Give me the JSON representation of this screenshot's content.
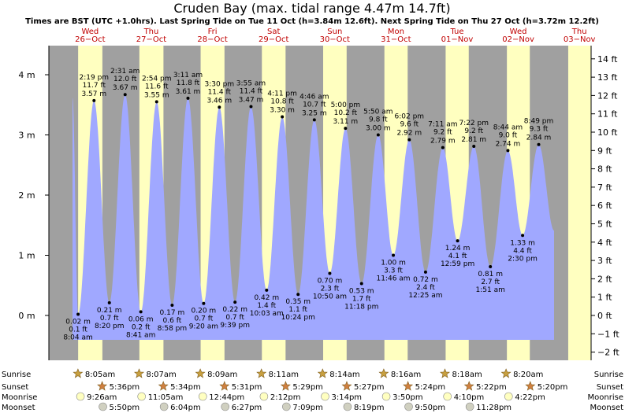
{
  "chart_data": {
    "type": "area",
    "title": "Cruden Bay (max. tidal range 4.47m 14.7ft)",
    "subtitle": "Times are BST (UTC +1.0hrs). Last Spring Tide on Tue 11 Oct (h=3.84m 12.6ft). Next Spring Tide on Thu 27 Oct (h=3.72m 12.2ft)",
    "left_axis": {
      "unit": "m",
      "ticks": [
        {
          "v": 0,
          "label": "0 m"
        },
        {
          "v": 1,
          "label": "1 m"
        },
        {
          "v": 2,
          "label": "2 m"
        },
        {
          "v": 3,
          "label": "3 m"
        },
        {
          "v": 4,
          "label": "4 m"
        }
      ],
      "range": [
        -0.5,
        4.5
      ]
    },
    "right_axis": {
      "unit": "ft",
      "ticks": [
        {
          "v": -2,
          "label": "−2 ft"
        },
        {
          "v": -1,
          "label": "−1 ft"
        },
        {
          "v": 0,
          "label": "0 ft"
        },
        {
          "v": 1,
          "label": "1 ft"
        },
        {
          "v": 2,
          "label": "2 ft"
        },
        {
          "v": 3,
          "label": "3 ft"
        },
        {
          "v": 4,
          "label": "4 ft"
        },
        {
          "v": 5,
          "label": "5 ft"
        },
        {
          "v": 6,
          "label": "6 ft"
        },
        {
          "v": 7,
          "label": "7 ft"
        },
        {
          "v": 8,
          "label": "8 ft"
        },
        {
          "v": 9,
          "label": "9 ft"
        },
        {
          "v": 10,
          "label": "10 ft"
        },
        {
          "v": 11,
          "label": "11 ft"
        },
        {
          "v": 12,
          "label": "12 ft"
        },
        {
          "v": 13,
          "label": "13 ft"
        },
        {
          "v": 14,
          "label": "14 ft"
        }
      ]
    },
    "days": [
      {
        "dow": "Wed",
        "date": "26−Oct",
        "sunrise": "8:05am",
        "sunset": "5:36pm",
        "moonrise": "9:26am",
        "moonset": "5:50pm"
      },
      {
        "dow": "Thu",
        "date": "27−Oct",
        "sunrise": "8:07am",
        "sunset": "5:34pm",
        "moonrise": "11:05am",
        "moonset": "6:04pm"
      },
      {
        "dow": "Fri",
        "date": "28−Oct",
        "sunrise": "8:09am",
        "sunset": "5:31pm",
        "moonrise": "12:44pm",
        "moonset": "6:27pm"
      },
      {
        "dow": "Sat",
        "date": "29−Oct",
        "sunrise": "8:11am",
        "sunset": "5:29pm",
        "moonrise": "2:12pm",
        "moonset": "7:09pm"
      },
      {
        "dow": "Sun",
        "date": "30−Oct",
        "sunrise": "8:14am",
        "sunset": "5:27pm",
        "moonrise": "3:14pm",
        "moonset": "8:19pm"
      },
      {
        "dow": "Mon",
        "date": "31−Oct",
        "sunrise": "8:16am",
        "sunset": "5:24pm",
        "moonrise": "3:50pm",
        "moonset": "9:50pm"
      },
      {
        "dow": "Tue",
        "date": "01−Nov",
        "sunrise": "8:18am",
        "sunset": "5:22pm",
        "moonrise": "4:10pm",
        "moonset": "11:28pm"
      },
      {
        "dow": "Wed",
        "date": "02−Nov",
        "sunrise": "8:20am",
        "sunset": "5:20pm",
        "moonrise": "4:22pm",
        "moonset": ""
      },
      {
        "dow": "Thu",
        "date": "03−Nov",
        "sunrise": "",
        "sunset": "",
        "moonrise": "",
        "moonset": ""
      }
    ],
    "start_height_m": 3.62,
    "end_height_m": 1.41,
    "extremes": [
      {
        "day": 0,
        "time": "8:04 am",
        "h": 0.02,
        "ft": "0.1 ft",
        "m": "0.02 m",
        "type": "low"
      },
      {
        "day": 0,
        "time": "2:19 pm",
        "h": 3.57,
        "ft": "11.7 ft",
        "m": "3.57 m",
        "type": "high"
      },
      {
        "day": 0,
        "time": "8:20 pm",
        "h": 0.21,
        "ft": "0.7 ft",
        "m": "0.21 m",
        "type": "low"
      },
      {
        "day": 1,
        "time": "2:31 am",
        "h": 3.67,
        "ft": "12.0 ft",
        "m": "3.67 m",
        "type": "high"
      },
      {
        "day": 1,
        "time": "8:41 am",
        "h": 0.06,
        "ft": "0.2 ft",
        "m": "0.06 m",
        "type": "low"
      },
      {
        "day": 1,
        "time": "2:54 pm",
        "h": 3.55,
        "ft": "11.6 ft",
        "m": "3.55 m",
        "type": "high"
      },
      {
        "day": 1,
        "time": "8:58 pm",
        "h": 0.17,
        "ft": "0.6 ft",
        "m": "0.17 m",
        "type": "low"
      },
      {
        "day": 2,
        "time": "3:11 am",
        "h": 3.61,
        "ft": "11.8 ft",
        "m": "3.61 m",
        "type": "high"
      },
      {
        "day": 2,
        "time": "9:20 am",
        "h": 0.2,
        "ft": "0.7 ft",
        "m": "0.20 m",
        "type": "low"
      },
      {
        "day": 2,
        "time": "3:30 pm",
        "h": 3.46,
        "ft": "11.4 ft",
        "m": "3.46 m",
        "type": "high"
      },
      {
        "day": 2,
        "time": "9:39 pm",
        "h": 0.22,
        "ft": "0.7 ft",
        "m": "0.22 m",
        "type": "low"
      },
      {
        "day": 3,
        "time": "3:55 am",
        "h": 3.47,
        "ft": "11.4 ft",
        "m": "3.47 m",
        "type": "high"
      },
      {
        "day": 3,
        "time": "10:03 am",
        "h": 0.42,
        "ft": "1.4 ft",
        "m": "0.42 m",
        "type": "low"
      },
      {
        "day": 3,
        "time": "4:11 pm",
        "h": 3.3,
        "ft": "10.8 ft",
        "m": "3.30 m",
        "type": "high"
      },
      {
        "day": 3,
        "time": "10:24 pm",
        "h": 0.35,
        "ft": "1.1 ft",
        "m": "0.35 m",
        "type": "low"
      },
      {
        "day": 4,
        "time": "4:46 am",
        "h": 3.25,
        "ft": "10.7 ft",
        "m": "3.25 m",
        "type": "high"
      },
      {
        "day": 4,
        "time": "10:50 am",
        "h": 0.7,
        "ft": "2.3 ft",
        "m": "0.70 m",
        "type": "low"
      },
      {
        "day": 4,
        "time": "5:00 pm",
        "h": 3.11,
        "ft": "10.2 ft",
        "m": "3.11 m",
        "type": "high"
      },
      {
        "day": 4,
        "time": "11:18 pm",
        "h": 0.53,
        "ft": "1.7 ft",
        "m": "0.53 m",
        "type": "low"
      },
      {
        "day": 5,
        "time": "5:50 am",
        "h": 3.0,
        "ft": "9.8 ft",
        "m": "3.00 m",
        "type": "high"
      },
      {
        "day": 5,
        "time": "11:46 am",
        "h": 1.0,
        "ft": "3.3 ft",
        "m": "1.00 m",
        "type": "low"
      },
      {
        "day": 5,
        "time": "6:02 pm",
        "h": 2.92,
        "ft": "9.6 ft",
        "m": "2.92 m",
        "type": "high"
      },
      {
        "day": 6,
        "time": "12:25 am",
        "h": 0.72,
        "ft": "2.4 ft",
        "m": "0.72 m",
        "type": "low"
      },
      {
        "day": 6,
        "time": "7:11 am",
        "h": 2.79,
        "ft": "9.2 ft",
        "m": "2.79 m",
        "type": "high"
      },
      {
        "day": 6,
        "time": "12:59 pm",
        "h": 1.24,
        "ft": "4.1 ft",
        "m": "1.24 m",
        "type": "low"
      },
      {
        "day": 6,
        "time": "7:22 pm",
        "h": 2.81,
        "ft": "9.2 ft",
        "m": "2.81 m",
        "type": "high"
      },
      {
        "day": 7,
        "time": "1:51 am",
        "h": 0.81,
        "ft": "2.7 ft",
        "m": "0.81 m",
        "type": "low"
      },
      {
        "day": 7,
        "time": "8:44 am",
        "h": 2.74,
        "ft": "9.0 ft",
        "m": "2.74 m",
        "type": "high"
      },
      {
        "day": 7,
        "time": "2:30 pm",
        "h": 1.33,
        "ft": "4.4 ft",
        "m": "1.33 m",
        "type": "low"
      },
      {
        "day": 7,
        "time": "8:49 pm",
        "h": 2.84,
        "ft": "9.3 ft",
        "m": "2.84 m",
        "type": "high"
      }
    ],
    "row_labels": {
      "sunrise": "Sunrise",
      "sunset": "Sunset",
      "moonrise": "Moonrise",
      "moonset": "Moonset"
    },
    "colors": {
      "water": "#a0a8ff",
      "night": "#a0a0a0",
      "day": "#ffffc0",
      "sun_star": "#c8a040",
      "sunset_star": "#d08040",
      "moon": "#ffffc0",
      "moon_set": "#d0d0c0",
      "day_label": "#c00000"
    }
  }
}
